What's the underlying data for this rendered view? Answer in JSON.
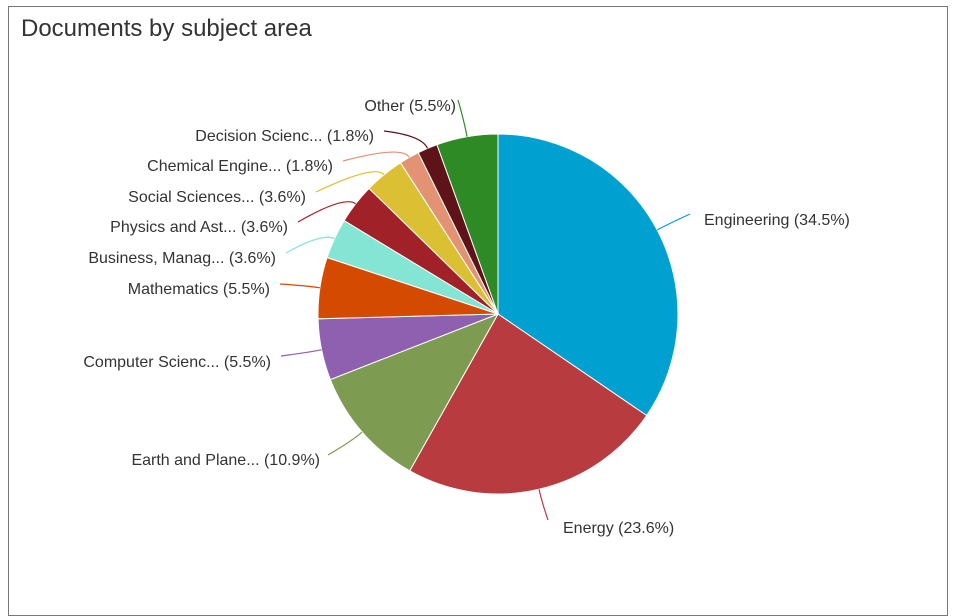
{
  "chart_data": {
    "type": "pie",
    "title": "Documents by subject area",
    "slices": [
      {
        "label": "Engineering (34.5%)",
        "value": 34.5,
        "color": "#00a0d0"
      },
      {
        "label": "Energy (23.6%)",
        "value": 23.6,
        "color": "#b83b3f"
      },
      {
        "label": "Earth and Plane... (10.9%)",
        "value": 10.9,
        "color": "#7d9c52"
      },
      {
        "label": "Computer Scienc... (5.5%)",
        "value": 5.5,
        "color": "#8f5fb0"
      },
      {
        "label": "Mathematics (5.5%)",
        "value": 5.5,
        "color": "#d44a00"
      },
      {
        "label": "Business, Manag... (3.6%)",
        "value": 3.6,
        "color": "#84e5d4"
      },
      {
        "label": "Physics and Ast... (3.6%)",
        "value": 3.6,
        "color": "#a12128"
      },
      {
        "label": "Social Sciences... (3.6%)",
        "value": 3.6,
        "color": "#dcc033"
      },
      {
        "label": "Chemical Engine... (1.8%)",
        "value": 1.8,
        "color": "#e39274"
      },
      {
        "label": "Decision Scienc... (1.8%)",
        "value": 1.8,
        "color": "#5e1319"
      },
      {
        "label": "Other (5.5%)",
        "value": 5.5,
        "color": "#2e8a24"
      }
    ]
  }
}
